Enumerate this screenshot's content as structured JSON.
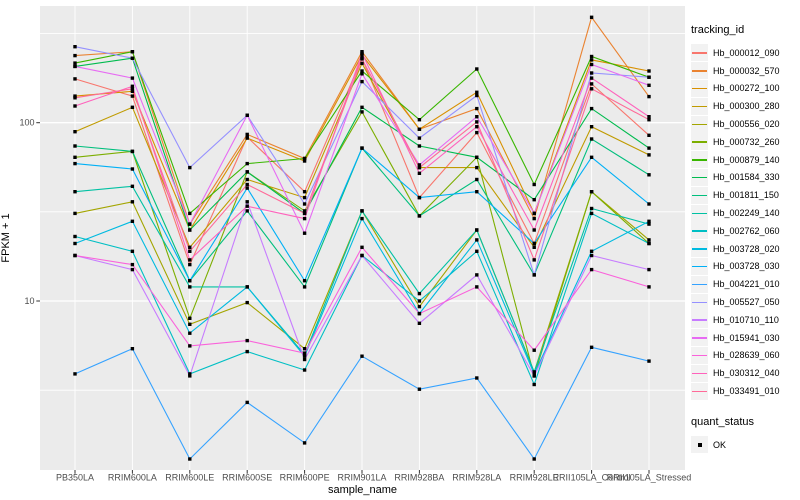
{
  "chart_data": {
    "type": "line",
    "title": "",
    "xlabel": "sample_name",
    "ylabel": "FPKM + 1",
    "y_scale": "log10",
    "ylim": [
      1.1,
      420
    ],
    "y_major_ticks": [
      10,
      100
    ],
    "y_minor_gridlines": [
      3.162,
      31.62,
      316.2
    ],
    "grid": true,
    "panel_bg": "#EBEBEB",
    "grid_color": "#FFFFFF",
    "tick_label_color": "#4D4D4D",
    "point_shape": "filled-square",
    "point_color": "#000000",
    "legend_position": "right",
    "legend_title": "tracking_id",
    "categories": [
      "PB350LA",
      "RRIM600LA",
      "RRIM600LE",
      "RRIM600SE",
      "RRIM600PE",
      "RRIM901LA",
      "RRIM928BA",
      "RRIM928LA",
      "RRIM928LE",
      "RRII105LA_Control",
      "RRII105LA_Stressed"
    ],
    "series": [
      {
        "name": "Hb_000012_090",
        "color": "#F8766D",
        "values": [
          176,
          141,
          16,
          83,
          41,
          230,
          38,
          88,
          21,
          165,
          85
        ]
      },
      {
        "name": "Hb_000032_570",
        "color": "#EA8331",
        "values": [
          238,
          250,
          27,
          86,
          63,
          250,
          92,
          120,
          29,
          390,
          140
        ]
      },
      {
        "name": "Hb_000272_100",
        "color": "#D89000",
        "values": [
          141,
          150,
          25,
          82,
          61,
          240,
          92,
          148,
          31,
          225,
          195
        ]
      },
      {
        "name": "Hb_000300_280",
        "color": "#C09B00",
        "values": [
          89,
          122,
          20,
          48,
          38,
          215,
          56,
          56,
          20,
          95,
          66
        ]
      },
      {
        "name": "Hb_000556_020",
        "color": "#A3A500",
        "values": [
          31,
          36,
          7.4,
          9.8,
          5.4,
          32,
          9.3,
          25,
          4.0,
          41,
          22
        ]
      },
      {
        "name": "Hb_000732_260",
        "color": "#7CAE00",
        "values": [
          64,
          69,
          8.0,
          53,
          32,
          115,
          30,
          64,
          3.8,
          41,
          21
        ]
      },
      {
        "name": "Hb_000879_140",
        "color": "#39B600",
        "values": [
          216,
          250,
          31,
          59,
          63,
          195,
          104,
          200,
          45,
          235,
          180
        ]
      },
      {
        "name": "Hb_001584_330",
        "color": "#00BB4E",
        "values": [
          207,
          230,
          25,
          53,
          31,
          122,
          74,
          64,
          37,
          120,
          72
        ]
      },
      {
        "name": "Hb_001811_150",
        "color": "#00BF7D",
        "values": [
          74,
          69,
          13,
          32,
          12,
          72,
          30,
          48,
          14,
          81,
          51
        ]
      },
      {
        "name": "Hb_002249_140",
        "color": "#00C1A3",
        "values": [
          41,
          44,
          12,
          12,
          5.0,
          32,
          11,
          25,
          4.0,
          33,
          27
        ]
      },
      {
        "name": "Hb_002762_060",
        "color": "#00BFC4",
        "values": [
          23,
          19,
          3.9,
          5.2,
          4.1,
          18,
          10,
          19,
          3.4,
          31,
          21
        ]
      },
      {
        "name": "Hb_003728_020",
        "color": "#00BAE0",
        "values": [
          21,
          28,
          6.6,
          12,
          4.9,
          29,
          8.5,
          22,
          3.9,
          19,
          28
        ]
      },
      {
        "name": "Hb_003728_030",
        "color": "#00B0F6",
        "values": [
          59,
          55,
          13,
          43,
          13,
          72,
          38,
          41,
          21,
          64,
          35
        ]
      },
      {
        "name": "Hb_004221_010",
        "color": "#35A2FF",
        "values": [
          3.9,
          5.4,
          1.3,
          2.7,
          1.6,
          4.9,
          3.2,
          3.7,
          1.3,
          5.5,
          4.6
        ]
      },
      {
        "name": "Hb_005527_050",
        "color": "#9590FF",
        "values": [
          267,
          230,
          56,
          110,
          35,
          170,
          82,
          142,
          14,
          190,
          180
        ]
      },
      {
        "name": "Hb_010710_110",
        "color": "#C77CFF",
        "values": [
          18,
          15,
          3.8,
          36,
          4.7,
          18,
          7.5,
          14,
          3.8,
          18,
          15
        ]
      },
      {
        "name": "Hb_015941_030",
        "color": "#E76BF3",
        "values": [
          207,
          178,
          27,
          110,
          24,
          188,
          58,
          108,
          31,
          212,
          162
        ]
      },
      {
        "name": "Hb_028639_060",
        "color": "#FA62DB",
        "values": [
          18,
          16,
          5.6,
          6.0,
          5.1,
          20,
          8.5,
          12,
          5.3,
          15,
          12
        ]
      },
      {
        "name": "Hb_030312_040",
        "color": "#FF62BC",
        "values": [
          124,
          160,
          17,
          34,
          29,
          245,
          52,
          95,
          25,
          178,
          108
        ]
      },
      {
        "name": "Hb_033491_010",
        "color": "#FF6A98",
        "values": [
          138,
          155,
          19,
          45,
          31,
          228,
          56,
          101,
          17,
          155,
          104
        ]
      }
    ],
    "legend2_title": "quant_status",
    "legend2_items": [
      {
        "label": "OK"
      }
    ]
  }
}
